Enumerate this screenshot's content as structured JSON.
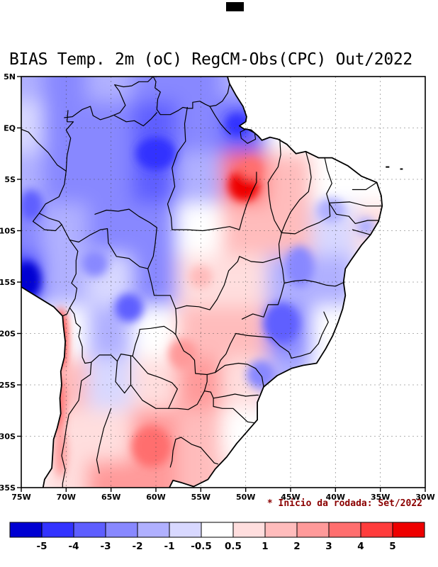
{
  "title": "BIAS Temp. 2m (oC) RegCM-Obs(CPC) Out/2022",
  "annotation": {
    "text": "* Inicio da rodada: Set/2022",
    "color": "#8b0000"
  },
  "chart_data": {
    "type": "heatmap",
    "title": "BIAS Temp. 2m (oC) RegCM-Obs(CPC) Out/2022",
    "units": "degC",
    "region": "South America / Brazil",
    "lon_range": [
      -75,
      -30
    ],
    "lat_range": [
      -35,
      5
    ],
    "lon_ticks": [
      -75,
      -70,
      -65,
      -60,
      -55,
      -50,
      -45,
      -40,
      -35,
      -30
    ],
    "x_tick_labels": [
      "75W",
      "70W",
      "65W",
      "60W",
      "55W",
      "50W",
      "45W",
      "40W",
      "35W",
      "30W"
    ],
    "lat_ticks": [
      5,
      0,
      -5,
      -10,
      -15,
      -20,
      -25,
      -30,
      -35
    ],
    "y_tick_labels": [
      "5N",
      "EQ",
      "5S",
      "10S",
      "15S",
      "20S",
      "25S",
      "30S",
      "35S"
    ],
    "gridlines": "dashed, every 5 degrees",
    "colorbar": {
      "tick_labels": [
        "-5",
        "-4",
        "-3",
        "-2",
        "-1",
        "-0.5",
        "0.5",
        "1",
        "2",
        "3",
        "4",
        "5"
      ],
      "levels": [
        -5,
        -4,
        -3,
        -2,
        -1,
        -0.5,
        0.5,
        1,
        2,
        3,
        4,
        5
      ],
      "colors": [
        "#0000d2",
        "#3333ff",
        "#5e5eff",
        "#8888ff",
        "#b0b0ff",
        "#d8d8ff",
        "#ffffff",
        "#ffdede",
        "#ffbcbc",
        "#ff9a9a",
        "#ff6e6e",
        "#ff3c3c",
        "#ee0000"
      ]
    },
    "grid": {
      "lons": [
        -75,
        -70,
        -65,
        -60,
        -55,
        -50,
        -45,
        -40,
        -35,
        -30
      ],
      "lats": [
        5,
        0,
        -5,
        -10,
        -15,
        -20,
        -25,
        -30,
        -35
      ],
      "bias_values": [
        [
          -1.5,
          -2.5,
          -2.0,
          -3.0,
          -2.5,
          -1.5,
          0.0,
          0.0,
          0.0,
          0.0
        ],
        [
          -1.0,
          -2.5,
          -3.0,
          -3.5,
          -2.5,
          -3.5,
          -0.5,
          0.0,
          0.0,
          0.0
        ],
        [
          -2.0,
          -2.5,
          -3.0,
          -3.5,
          -1.5,
          3.5,
          1.0,
          -0.5,
          -0.5,
          0.0
        ],
        [
          -2.5,
          -2.0,
          -2.5,
          -3.0,
          -0.5,
          1.0,
          1.0,
          -1.0,
          0.5,
          0.0
        ],
        [
          -4.5,
          -1.5,
          -1.0,
          -2.5,
          0.5,
          0.5,
          -2.0,
          -1.5,
          0.0,
          0.0
        ],
        [
          -1.0,
          0.0,
          -2.0,
          -0.5,
          1.5,
          1.0,
          -2.5,
          -0.5,
          0.0,
          0.0
        ],
        [
          0.0,
          1.5,
          -1.0,
          0.5,
          2.0,
          0.5,
          -1.5,
          0.0,
          0.0,
          0.0
        ],
        [
          0.0,
          0.5,
          0.5,
          2.5,
          1.5,
          -0.5,
          0.0,
          0.0,
          0.0,
          0.0
        ],
        [
          0.0,
          0.5,
          2.0,
          2.5,
          1.0,
          0.5,
          0.0,
          0.0,
          0.0,
          0.0
        ]
      ]
    },
    "features": [
      {
        "lon": -50.2,
        "lat": -5.6,
        "rx_deg": 1.7,
        "ry_deg": 1.5,
        "value": 5.5
      },
      {
        "lon": -49.4,
        "lat": -4.0,
        "rx_deg": 1.2,
        "ry_deg": 1.0,
        "value": 3.0
      },
      {
        "lon": -70.6,
        "lat": -20.5,
        "rx_deg": 0.8,
        "ry_deg": 3.0,
        "value": 4.0
      },
      {
        "lon": -70.9,
        "lat": -27.0,
        "rx_deg": 0.8,
        "ry_deg": 3.0,
        "value": 3.0
      },
      {
        "lon": -70.6,
        "lat": -31.5,
        "rx_deg": 0.7,
        "ry_deg": 2.5,
        "value": 2.5
      },
      {
        "lon": -74.3,
        "lat": -14.8,
        "rx_deg": 1.5,
        "ry_deg": 1.8,
        "value": -5.5
      },
      {
        "lon": -73.9,
        "lat": -7.5,
        "rx_deg": 1.3,
        "ry_deg": 1.5,
        "value": -3.5
      },
      {
        "lon": -63.0,
        "lat": -17.5,
        "rx_deg": 1.6,
        "ry_deg": 1.4,
        "value": -3.5
      },
      {
        "lon": -60.0,
        "lat": -2.5,
        "rx_deg": 2.2,
        "ry_deg": 1.6,
        "value": -4.5
      },
      {
        "lon": -51.0,
        "lat": 0.3,
        "rx_deg": 1.3,
        "ry_deg": 1.1,
        "value": -4.5
      },
      {
        "lon": -46.0,
        "lat": -19.0,
        "rx_deg": 2.0,
        "ry_deg": 2.0,
        "value": -3.5
      },
      {
        "lon": -44.0,
        "lat": -13.5,
        "rx_deg": 1.6,
        "ry_deg": 2.0,
        "value": -2.5
      },
      {
        "lon": -48.3,
        "lat": -24.0,
        "rx_deg": 1.6,
        "ry_deg": 1.4,
        "value": -2.5
      },
      {
        "lon": -40.5,
        "lat": -8.0,
        "rx_deg": 1.6,
        "ry_deg": 1.2,
        "value": -1.5
      },
      {
        "lon": -36.6,
        "lat": -9.6,
        "rx_deg": 1.0,
        "ry_deg": 0.9,
        "value": -1.5
      },
      {
        "lon": -57.0,
        "lat": -22.0,
        "rx_deg": 1.6,
        "ry_deg": 1.5,
        "value": 2.5
      },
      {
        "lon": -60.5,
        "lat": -31.0,
        "rx_deg": 2.2,
        "ry_deg": 2.0,
        "value": 3.0
      },
      {
        "lon": -66.8,
        "lat": -13.2,
        "rx_deg": 1.5,
        "ry_deg": 1.3,
        "value": -3.0
      },
      {
        "lon": -55.0,
        "lat": -14.5,
        "rx_deg": 1.3,
        "ry_deg": 1.1,
        "value": 1.0
      }
    ]
  }
}
